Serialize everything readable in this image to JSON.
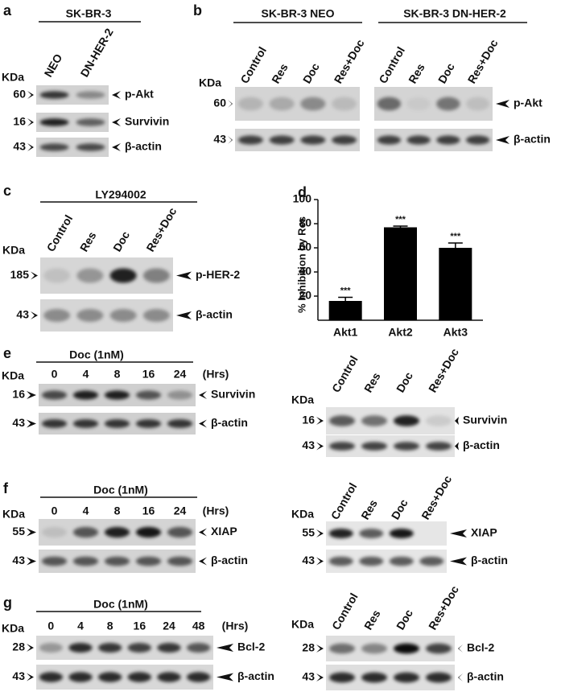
{
  "panels": [
    {
      "label": "a",
      "unit": "KDa",
      "groups": [
        {
          "header": "SK-BR-3",
          "lanes": [
            "NEO",
            "DN-HER-2"
          ]
        }
      ],
      "rows": [
        {
          "marker": "60",
          "target": "p-Akt"
        },
        {
          "marker": "16",
          "target": "Survivin"
        },
        {
          "marker": "43",
          "target": "β-actin"
        }
      ]
    },
    {
      "label": "b",
      "unit": "KDa",
      "groups": [
        {
          "header": "SK-BR-3 NEO",
          "lanes": [
            "Control",
            "Res",
            "Doc",
            "Res+Doc"
          ]
        },
        {
          "header": "SK-BR-3 DN-HER-2",
          "lanes": [
            "Control",
            "Res",
            "Doc",
            "Res+Doc"
          ]
        }
      ],
      "rows": [
        {
          "marker": "60",
          "target": "p-Akt"
        },
        {
          "marker": "43",
          "target": "β-actin"
        }
      ]
    },
    {
      "label": "c",
      "unit": "KDa",
      "groups": [
        {
          "header": "LY294002",
          "lanes": [
            "Control",
            "Res",
            "Doc",
            "Res+Doc"
          ]
        }
      ],
      "rows": [
        {
          "marker": "185",
          "target": "p-HER-2"
        },
        {
          "marker": "43",
          "target": "β-actin"
        }
      ]
    },
    {
      "label": "e",
      "unit": "KDa",
      "groups": [
        {
          "header": "Doc (1nM)",
          "lanes": [
            "0",
            "4",
            "8",
            "16",
            "24"
          ],
          "lane_unit": "(Hrs)"
        }
      ],
      "rows": [
        {
          "marker": "16",
          "target": "Survivin"
        },
        {
          "marker": "43",
          "target": "β-actin"
        }
      ]
    },
    {
      "unit": "KDa",
      "groups": [
        {
          "lanes": [
            "Control",
            "Res",
            "Doc",
            "Res+Doc"
          ]
        }
      ],
      "rows": [
        {
          "marker": "16",
          "target": "Survivin"
        },
        {
          "marker": "43",
          "target": "β-actin"
        }
      ]
    },
    {
      "label": "f",
      "unit": "KDa",
      "groups": [
        {
          "header": "Doc (1nM)",
          "lanes": [
            "0",
            "4",
            "8",
            "16",
            "24"
          ],
          "lane_unit": "(Hrs)"
        }
      ],
      "rows": [
        {
          "marker": "55",
          "target": "XIAP"
        },
        {
          "marker": "43",
          "target": "β-actin"
        }
      ]
    },
    {
      "unit": "KDa",
      "groups": [
        {
          "lanes": [
            "Control",
            "Res",
            "Doc",
            "Res+Doc"
          ]
        }
      ],
      "rows": [
        {
          "marker": "55",
          "target": "XIAP"
        },
        {
          "marker": "43",
          "target": "β-actin"
        }
      ]
    },
    {
      "label": "g",
      "unit": "KDa",
      "groups": [
        {
          "header": "Doc (1nM)",
          "lanes": [
            "0",
            "4",
            "8",
            "16",
            "24",
            "48"
          ],
          "lane_unit": "(Hrs)"
        }
      ],
      "rows": [
        {
          "marker": "28",
          "target": "Bcl-2"
        },
        {
          "marker": "43",
          "target": "β-actin"
        }
      ]
    },
    {
      "unit": "KDa",
      "groups": [
        {
          "lanes": [
            "Control",
            "Res",
            "Doc",
            "Res+Doc"
          ]
        }
      ],
      "rows": [
        {
          "marker": "28",
          "target": "Bcl-2"
        },
        {
          "marker": "43",
          "target": "β-actin"
        }
      ]
    }
  ],
  "chart_data": {
    "type": "bar",
    "panel_label": "d",
    "y_label": "% Inhibition by Res",
    "categories": [
      "Akt1",
      "Akt2",
      "Akt3"
    ],
    "values": [
      16,
      77,
      60
    ],
    "errors": [
      3,
      1,
      4
    ],
    "annotations": [
      "***",
      "***",
      "***"
    ],
    "color": "#000000",
    "ylim": [
      0,
      100
    ],
    "yticks": [
      20,
      40,
      60,
      80,
      100
    ]
  }
}
